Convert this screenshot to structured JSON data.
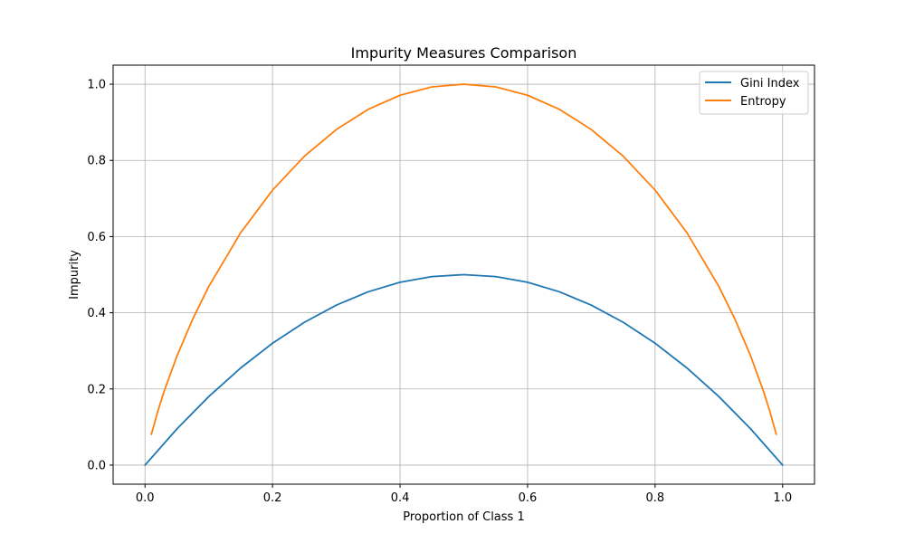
{
  "chart_data": {
    "type": "line",
    "title": "Impurity Measures Comparison",
    "xlabel": "Proportion of Class 1",
    "ylabel": "Impurity",
    "xlim": [
      -0.05,
      1.05
    ],
    "ylim": [
      -0.05,
      1.05
    ],
    "xticks": [
      0.0,
      0.2,
      0.4,
      0.6,
      0.8,
      1.0
    ],
    "xtick_labels": [
      "0.0",
      "0.2",
      "0.4",
      "0.6",
      "0.8",
      "1.0"
    ],
    "yticks": [
      0.0,
      0.2,
      0.4,
      0.6,
      0.8,
      1.0
    ],
    "ytick_labels": [
      "0.0",
      "0.2",
      "0.4",
      "0.6",
      "0.8",
      "1.0"
    ],
    "grid": true,
    "legend_position": "top-right",
    "series": [
      {
        "name": "Gini Index",
        "color": "#1f77b4",
        "x": [
          0.0,
          0.05,
          0.1,
          0.15,
          0.2,
          0.25,
          0.3,
          0.35,
          0.4,
          0.45,
          0.5,
          0.55,
          0.6,
          0.65,
          0.7,
          0.75,
          0.8,
          0.85,
          0.9,
          0.95,
          1.0
        ],
        "y": [
          0.0,
          0.095,
          0.18,
          0.255,
          0.32,
          0.375,
          0.42,
          0.455,
          0.48,
          0.495,
          0.5,
          0.495,
          0.48,
          0.455,
          0.42,
          0.375,
          0.32,
          0.255,
          0.18,
          0.095,
          0.0
        ]
      },
      {
        "name": "Entropy",
        "color": "#ff7f0e",
        "x": [
          0.01,
          0.02,
          0.03,
          0.05,
          0.075,
          0.1,
          0.15,
          0.2,
          0.25,
          0.3,
          0.35,
          0.4,
          0.45,
          0.5,
          0.55,
          0.6,
          0.65,
          0.7,
          0.75,
          0.8,
          0.85,
          0.9,
          0.925,
          0.95,
          0.97,
          0.98,
          0.99
        ],
        "y": [
          0.081,
          0.141,
          0.194,
          0.286,
          0.384,
          0.469,
          0.61,
          0.722,
          0.811,
          0.881,
          0.934,
          0.971,
          0.993,
          1.0,
          0.993,
          0.971,
          0.934,
          0.881,
          0.811,
          0.722,
          0.61,
          0.469,
          0.384,
          0.286,
          0.194,
          0.141,
          0.081
        ]
      }
    ]
  }
}
